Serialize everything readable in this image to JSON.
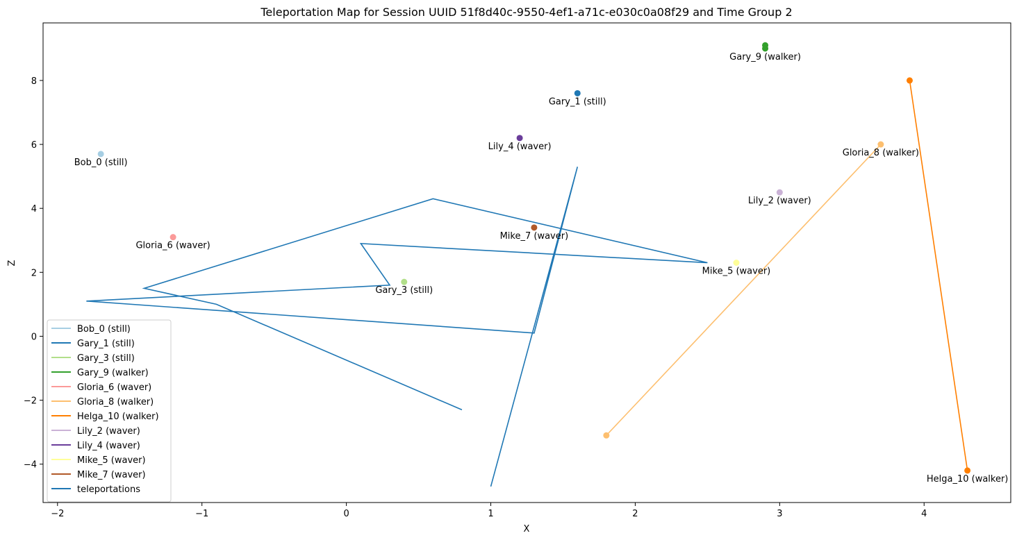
{
  "chart_data": {
    "type": "scatter",
    "title": "Teleportation Map for Session UUID 51f8d40c-9550-4ef1-a71c-e030c0a08f29 and Time Group 2",
    "xlabel": "X",
    "ylabel": "Z",
    "xlim": [
      -2.1,
      4.6
    ],
    "ylim": [
      -5.2,
      9.8
    ],
    "xticks": [
      -2,
      -1,
      0,
      1,
      2,
      3,
      4
    ],
    "yticks": [
      -4,
      -2,
      0,
      2,
      4,
      6,
      8
    ],
    "grid": false,
    "legend_position": "lower-left",
    "series": [
      {
        "name": "Bob_0 (still)",
        "color": "#a6cee3",
        "points": [
          [
            -1.7,
            5.7
          ]
        ],
        "label_point": [
          -1.7,
          5.7
        ]
      },
      {
        "name": "Gary_1 (still)",
        "color": "#1f78b4",
        "points": [
          [
            1.6,
            7.6
          ]
        ],
        "label_point": [
          1.6,
          7.6
        ]
      },
      {
        "name": "Gary_3 (still)",
        "color": "#b2df8a",
        "points": [
          [
            0.4,
            1.7
          ]
        ],
        "label_point": [
          0.4,
          1.7
        ]
      },
      {
        "name": "Gary_9 (walker)",
        "color": "#33a02c",
        "points": [
          [
            2.9,
            9.1
          ],
          [
            2.9,
            9.0
          ]
        ],
        "label_point": [
          2.9,
          9.0
        ]
      },
      {
        "name": "Gloria_6 (waver)",
        "color": "#fb9a99",
        "points": [
          [
            -1.2,
            3.1
          ]
        ],
        "label_point": [
          -1.2,
          3.1
        ]
      },
      {
        "name": "Gloria_8 (walker)",
        "color": "#fdbf6f",
        "points": [
          [
            1.8,
            -3.1
          ],
          [
            3.7,
            6.0
          ]
        ],
        "label_point": [
          3.7,
          6.0
        ]
      },
      {
        "name": "Helga_10 (walker)",
        "color": "#ff7f00",
        "points": [
          [
            3.9,
            8.0
          ],
          [
            4.3,
            -4.2
          ]
        ],
        "label_point": [
          4.3,
          -4.2
        ]
      },
      {
        "name": "Lily_2 (waver)",
        "color": "#cab2d6",
        "points": [
          [
            3.0,
            4.5
          ]
        ],
        "label_point": [
          3.0,
          4.5
        ]
      },
      {
        "name": "Lily_4 (waver)",
        "color": "#6a3d9a",
        "points": [
          [
            1.2,
            6.2
          ]
        ],
        "label_point": [
          1.2,
          6.2
        ]
      },
      {
        "name": "Mike_5 (waver)",
        "color": "#ffff99",
        "points": [
          [
            2.7,
            2.3
          ]
        ],
        "label_point": [
          2.7,
          2.3
        ]
      },
      {
        "name": "Mike_7 (waver)",
        "color": "#b15928",
        "points": [
          [
            1.3,
            3.4
          ]
        ],
        "label_point": [
          1.3,
          3.4
        ]
      }
    ],
    "teleportations": {
      "name": "teleportations",
      "color": "#1f77b4",
      "points": [
        [
          0.8,
          -2.3
        ],
        [
          -0.9,
          1.0
        ],
        [
          -1.4,
          1.5
        ],
        [
          0.6,
          4.3
        ],
        [
          2.5,
          2.3
        ],
        [
          0.1,
          2.9
        ],
        [
          0.3,
          1.6
        ],
        [
          -1.8,
          1.1
        ],
        [
          1.3,
          0.1
        ],
        [
          1.6,
          5.3
        ],
        [
          1.0,
          -4.7
        ]
      ]
    }
  }
}
